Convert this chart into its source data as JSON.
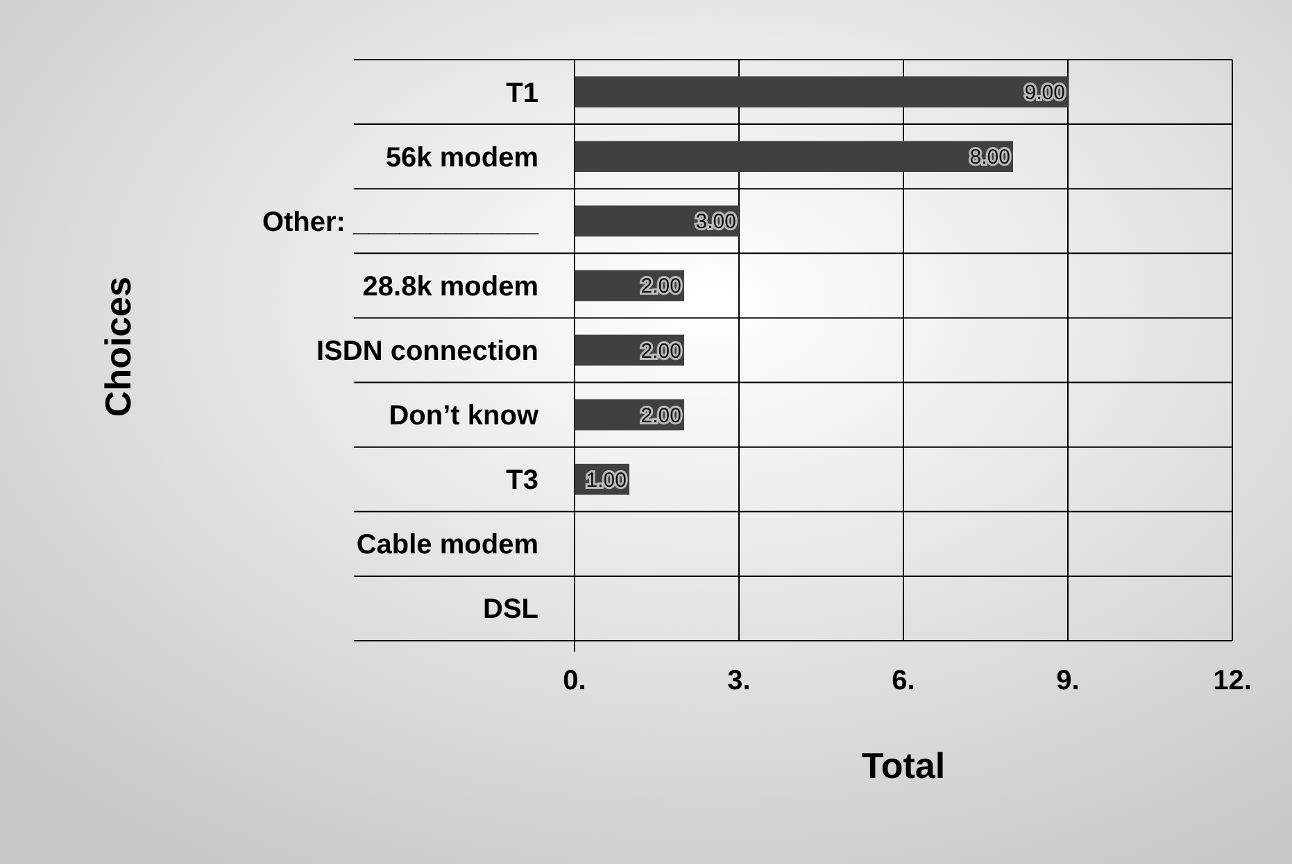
{
  "chart_data": {
    "type": "bar",
    "orientation": "horizontal",
    "xlabel": "Total",
    "ylabel": "Choices",
    "categories": [
      "T1",
      "56k modem",
      "Other: ____________",
      "28.8k modem",
      "ISDN connection",
      "Don’t know",
      "T3",
      "Cable modem",
      "DSL"
    ],
    "values": [
      9,
      8,
      3,
      2,
      2,
      2,
      1,
      0,
      0
    ],
    "value_labels": [
      "9.00",
      "8.00",
      "3.00",
      "2.00",
      "2.00",
      "2.00",
      "1.00",
      null,
      null
    ],
    "color": "#404040",
    "xlim": [
      0,
      12
    ],
    "xticks": [
      {
        "value": 0,
        "label": "0."
      },
      {
        "value": 3,
        "label": "3."
      },
      {
        "value": 6,
        "label": "6."
      },
      {
        "value": 9,
        "label": "9."
      },
      {
        "value": 12,
        "label": "12."
      }
    ],
    "grid": true
  }
}
